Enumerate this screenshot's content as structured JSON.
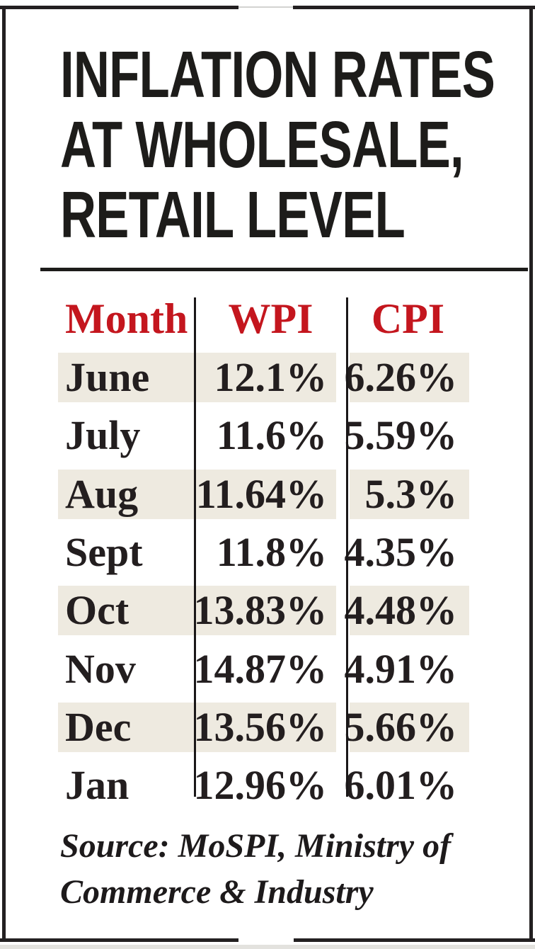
{
  "title": {
    "line1": "INFLATION RATES",
    "line2": "AT WHOLESALE,",
    "line3": "RETAIL LEVEL"
  },
  "table": {
    "columns": [
      "Month",
      "WPI",
      "CPI"
    ],
    "rows": [
      {
        "month": "June",
        "wpi": "12.1%",
        "cpi": "6.26%"
      },
      {
        "month": "July",
        "wpi": "11.6%",
        "cpi": "5.59%"
      },
      {
        "month": "Aug",
        "wpi": "11.64%",
        "cpi": "5.3%"
      },
      {
        "month": "Sept",
        "wpi": "11.8%",
        "cpi": "4.35%"
      },
      {
        "month": "Oct",
        "wpi": "13.83%",
        "cpi": "4.48%"
      },
      {
        "month": "Nov",
        "wpi": "14.87%",
        "cpi": "4.91%"
      },
      {
        "month": "Dec",
        "wpi": "13.56%",
        "cpi": "5.66%"
      },
      {
        "month": "Jan",
        "wpi": "12.96%",
        "cpi": "6.01%"
      }
    ]
  },
  "source": {
    "line1": "Source: MoSPI, Ministry of",
    "line2": "Commerce & Industry"
  },
  "colors": {
    "header_red": "#c4161e",
    "text_black": "#231e1f",
    "stripe_beige": "#eeeae0",
    "border_black": "#232021"
  },
  "chart_data": {
    "type": "table",
    "title": "INFLATION RATES AT WHOLESALE, RETAIL LEVEL",
    "categories": [
      "June",
      "July",
      "Aug",
      "Sept",
      "Oct",
      "Nov",
      "Dec",
      "Jan"
    ],
    "series": [
      {
        "name": "WPI",
        "unit": "%",
        "values": [
          12.1,
          11.6,
          11.64,
          11.8,
          13.83,
          14.87,
          13.56,
          12.96
        ]
      },
      {
        "name": "CPI",
        "unit": "%",
        "values": [
          6.26,
          5.59,
          5.3,
          4.35,
          4.48,
          4.91,
          5.66,
          6.01
        ]
      }
    ],
    "source": "Source: MoSPI, Ministry of Commerce & Industry",
    "layout": {
      "stripe_rows": [
        "June",
        "Aug",
        "Oct",
        "Dec"
      ],
      "column_dividers": true
    }
  }
}
